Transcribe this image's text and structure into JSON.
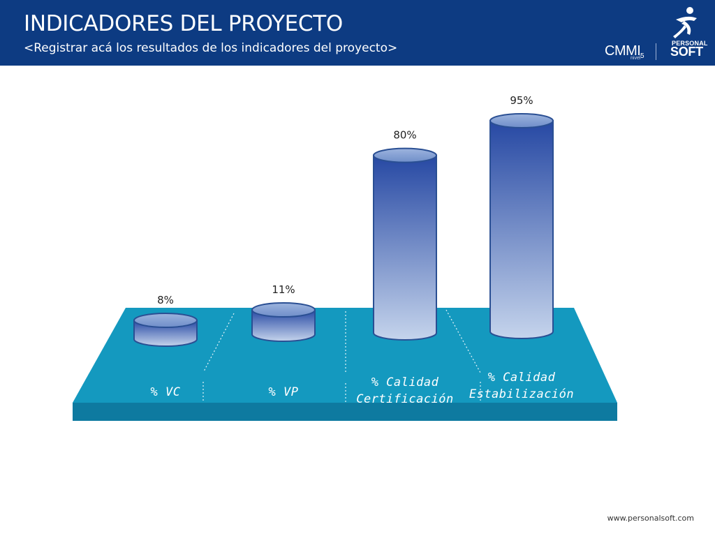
{
  "header": {
    "title": "INDICADORES DEL PROYECTO",
    "subtitle": "<Registrar acá los resultados de los indicadores del proyecto>"
  },
  "branding": {
    "cmmi": "CMMI",
    "cmmi_level_label": "nivel",
    "cmmi_level": "5",
    "logo_line1": "PERSONAL",
    "logo_line2": "SOFT"
  },
  "footer": {
    "url": "www.personalsoft.com"
  },
  "colors": {
    "header_bg": "#0d3b82",
    "platform_top": "#1499bf",
    "platform_front": "#0e7aa0",
    "bar_dark": "#2648a3",
    "bar_light": "#c5d4ec",
    "label_color": "#ffffff"
  },
  "chart_data": {
    "type": "bar",
    "style": "3d-cylinder",
    "categories": [
      [
        "% VC"
      ],
      [
        "% VP"
      ],
      [
        "% Calidad",
        "Certificación"
      ],
      [
        "% Calidad",
        "Estabilización"
      ]
    ],
    "values": [
      8,
      11,
      80,
      95
    ],
    "value_labels": [
      "8%",
      "11%",
      "80%",
      "95%"
    ],
    "ylim": [
      0,
      100
    ],
    "grid": false,
    "legend": "none"
  }
}
